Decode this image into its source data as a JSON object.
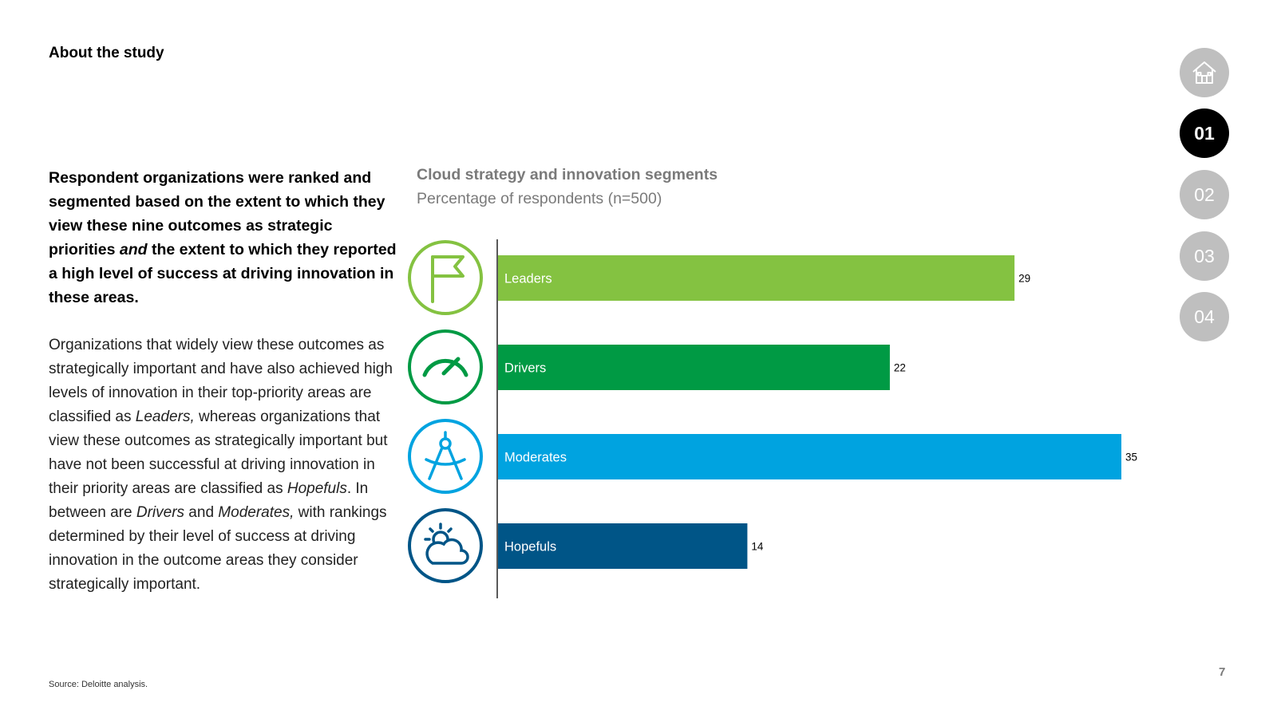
{
  "page": {
    "section_title": "About the study",
    "lead": {
      "part1": "Respondent organizations were ranked and segmented based on the extent to which they view these nine outcomes as strategic priorities ",
      "emph": "and",
      "part2": " the extent to which they reported a high level of success at driving innovation in these areas."
    },
    "body": {
      "t1": "Organizations that widely view these outcomes as strategically important and have also achieved high levels of innovation in their top-priority areas are classified as ",
      "e1": "Leaders,",
      "t2": " whereas organizations that view these outcomes as strategically important but have not been successful at driving innovation in their priority areas are classified as ",
      "e2": "Hopefuls",
      "t3": ". In between are ",
      "e3": "Drivers",
      "t4": " and ",
      "e4": "Moderates,",
      "t5": " with rankings determined by their level of success at driving innovation in the outcome areas they consider strategically important."
    },
    "source": "Source: Deloitte analysis.",
    "page_number": "7"
  },
  "nav": {
    "items": [
      {
        "label": "",
        "icon": "home-icon",
        "active": false
      },
      {
        "label": "01",
        "active": true
      },
      {
        "label": "02",
        "active": false
      },
      {
        "label": "03",
        "active": false
      },
      {
        "label": "04",
        "active": false
      }
    ]
  },
  "chart_data": {
    "type": "bar",
    "orientation": "horizontal",
    "title": "Cloud strategy and innovation segments",
    "subtitle": "Percentage of respondents (n=500)",
    "categories": [
      "Leaders",
      "Drivers",
      "Moderates",
      "Hopefuls"
    ],
    "values": [
      29,
      22,
      35,
      14
    ],
    "xlim": [
      0,
      35
    ],
    "colors": [
      "#84c241",
      "#009a44",
      "#00a3e0",
      "#005587"
    ],
    "icons": [
      "flag-icon",
      "speedometer-icon",
      "compass-icon",
      "weather-icon"
    ]
  }
}
